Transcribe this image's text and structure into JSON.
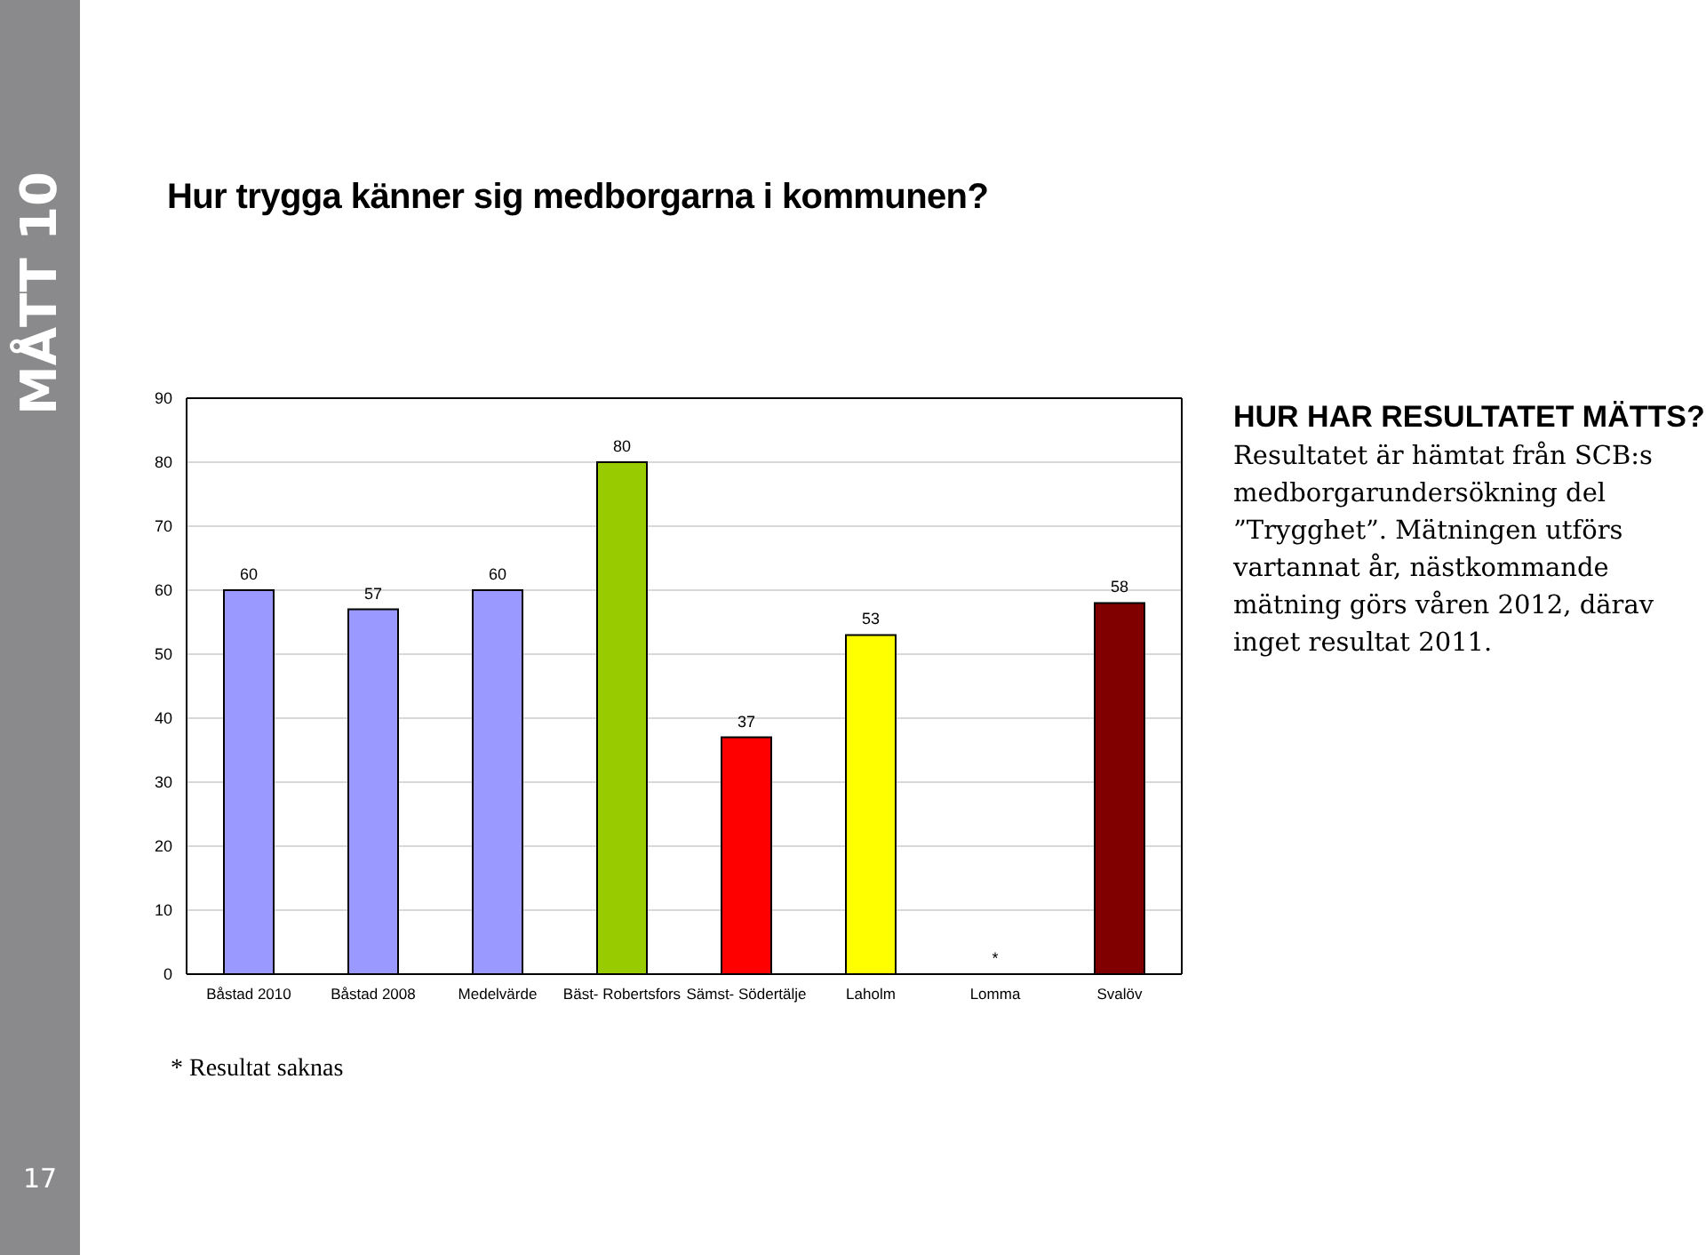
{
  "chart_data": {
    "type": "bar",
    "title": "Hur trygga känner sig medborgarna i kommunen?",
    "categories": [
      "Båstad 2010",
      "Båstad 2008",
      "Medelvärde",
      "Bäst- Robertsfors",
      "Sämst- Södertälje",
      "Laholm",
      "Lomma",
      "Svalöv"
    ],
    "values": [
      60,
      57,
      60,
      80,
      37,
      53,
      null,
      58
    ],
    "colors": [
      "#9999ff",
      "#9999ff",
      "#9999ff",
      "#99cc00",
      "#ff0000",
      "#ffff00",
      "#ffffff",
      "#800000"
    ],
    "value_labels": [
      "60",
      "57",
      "60",
      "80",
      "37",
      "53",
      "*",
      "58"
    ],
    "ylim": [
      0,
      90
    ],
    "yticks": [
      0,
      10,
      20,
      30,
      40,
      50,
      60,
      70,
      80,
      90
    ],
    "grid": "y",
    "legend": false,
    "annotations": [
      "MÅTT 10",
      "HUR HAR RESULTATET MÄTTS?",
      "Resultatet är hämtat från SCB:s medborgarundersökning del ”Trygghet”. Mätningen utförs vartannat år, nästkommande mätning görs våren 2012, därav inget resultat 2011.",
      "* Resultat saknas",
      "17"
    ]
  }
}
